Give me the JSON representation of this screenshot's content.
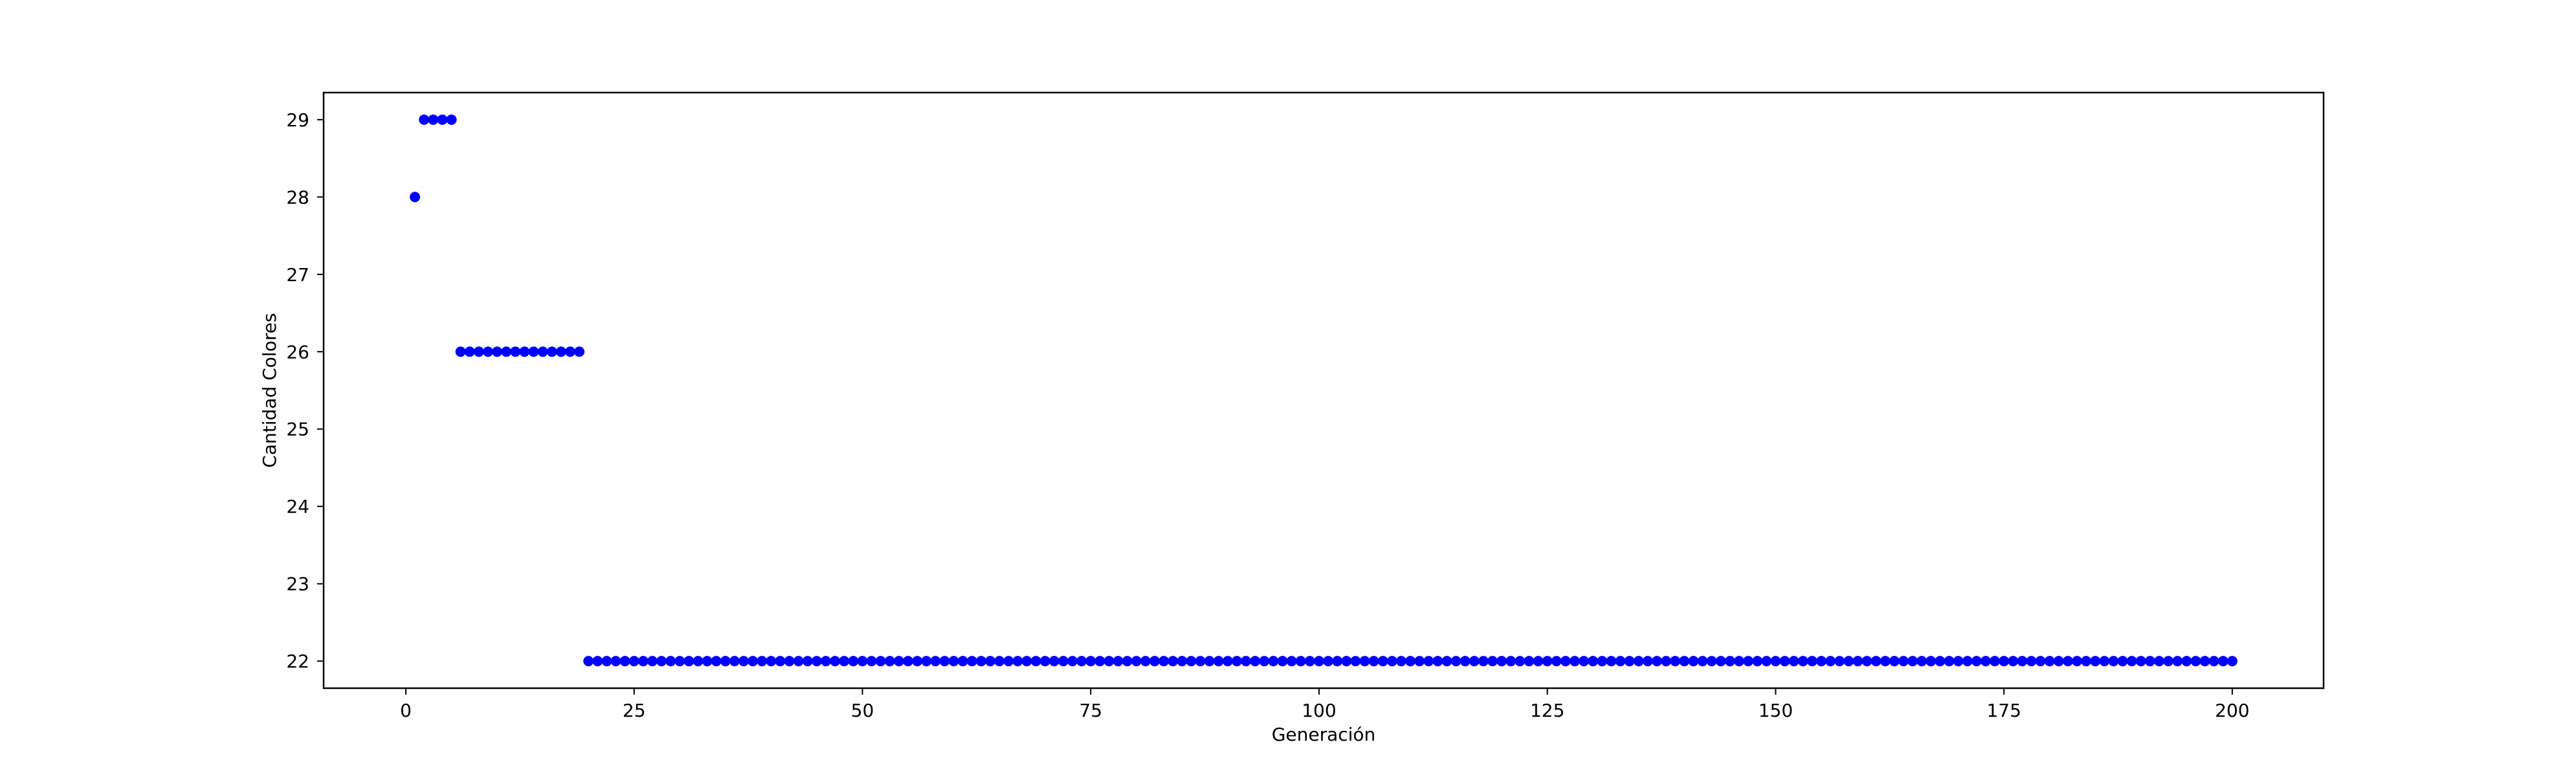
{
  "chart_data": {
    "type": "scatter",
    "title": "",
    "xlabel": "Generación",
    "ylabel": "Cantidad Colores",
    "xlim": [
      -9,
      210
    ],
    "ylim": [
      21.65,
      29.35
    ],
    "xticks": [
      0,
      25,
      50,
      75,
      100,
      125,
      150,
      175,
      200
    ],
    "yticks": [
      22,
      23,
      24,
      25,
      26,
      27,
      28,
      29
    ],
    "grid": false,
    "marker_color": "#0000ff",
    "series": [
      {
        "segments": [
          {
            "x_start": 1,
            "x_end": 1,
            "y": 28
          },
          {
            "x_start": 2,
            "x_end": 5,
            "y": 29
          },
          {
            "x_start": 6,
            "x_end": 19,
            "y": 26
          },
          {
            "x_start": 20,
            "x_end": 200,
            "y": 22
          }
        ]
      }
    ]
  }
}
